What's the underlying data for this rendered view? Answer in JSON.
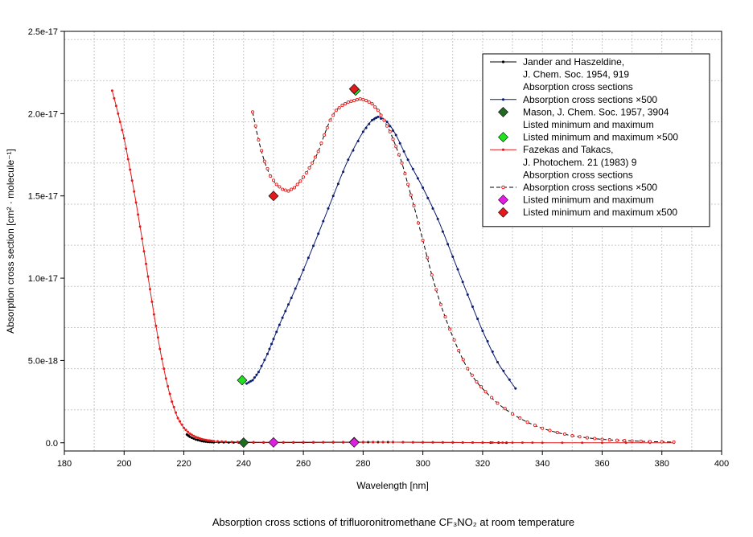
{
  "chart_data": {
    "type": "line",
    "title": "",
    "xlabel": "Wavelength [nm]",
    "ylabel": "Absorption cross section [cm² · molecule⁻¹]",
    "caption": "Absorption cross sctions of trifluoronitromethane CF₃NO₂ at room temperature",
    "xlim": [
      180,
      400
    ],
    "ylim": [
      -5e-19,
      2.5e-17
    ],
    "xticks": [
      180,
      200,
      220,
      240,
      260,
      280,
      300,
      320,
      340,
      360,
      380,
      400
    ],
    "xtick_labels": [
      "180",
      "200",
      "220",
      "240",
      "260",
      "280",
      "300",
      "320",
      "340",
      "360",
      "380",
      "400"
    ],
    "yticks": [
      0,
      5e-18,
      1e-17,
      1.5e-17,
      2e-17,
      2.5e-17
    ],
    "ytick_labels": [
      "0.0",
      "5.0e-18",
      "1.0e-17",
      "1.5e-17",
      "2.0e-17",
      "2.5e-17"
    ],
    "grid": true,
    "legend_position": "top-right",
    "colors": {
      "black": "#000000",
      "navy": "#0a1a6e",
      "red": "#e41a1a",
      "darkgreen": "#1f6b1f",
      "lime": "#22e022",
      "magenta": "#e020e0"
    },
    "series": [
      {
        "name": "Jander and Haszeldine, J. Chem. Soc. 1954, 919 Absorption cross sections",
        "style": "line-dots",
        "color": "#000000",
        "points": [
          [
            221,
            5e-19
          ],
          [
            222,
            3.6e-19
          ],
          [
            224,
            2e-19
          ],
          [
            226,
            1e-19
          ],
          [
            228,
            5e-20
          ],
          [
            230,
            3e-20
          ],
          [
            235,
            2e-20
          ],
          [
            240,
            1.5e-20
          ],
          [
            250,
            1.3e-20
          ],
          [
            260,
            1.5e-20
          ],
          [
            270,
            2.3e-20
          ],
          [
            280,
            3.3e-20
          ],
          [
            285,
            3.9e-20
          ],
          [
            290,
            3.6e-20
          ],
          [
            300,
            2.6e-20
          ],
          [
            310,
            1.6e-20
          ],
          [
            320,
            9e-21
          ],
          [
            328,
            5e-21
          ]
        ]
      },
      {
        "name": "Absorption cross sections ×500",
        "style": "line-dots",
        "color": "#0a1a6e",
        "points": [
          [
            241,
            3.6e-18
          ],
          [
            243,
            3.8e-18
          ],
          [
            245,
            4.3e-18
          ],
          [
            248,
            5.4e-18
          ],
          [
            250,
            6.3e-18
          ],
          [
            253,
            7.6e-18
          ],
          [
            256,
            8.8e-18
          ],
          [
            260,
            1.05e-17
          ],
          [
            265,
            1.27e-17
          ],
          [
            270,
            1.5e-17
          ],
          [
            275,
            1.72e-17
          ],
          [
            280,
            1.89e-17
          ],
          [
            283,
            1.96e-17
          ],
          [
            285,
            1.98e-17
          ],
          [
            288,
            1.95e-17
          ],
          [
            291,
            1.87e-17
          ],
          [
            295,
            1.72e-17
          ],
          [
            300,
            1.55e-17
          ],
          [
            305,
            1.36e-17
          ],
          [
            310,
            1.13e-17
          ],
          [
            315,
            9e-18
          ],
          [
            320,
            6.8e-18
          ],
          [
            325,
            4.9e-18
          ],
          [
            331,
            3.3e-18
          ]
        ]
      },
      {
        "name": "Fazekas and Takacs, J. Photochem. 21 (1983) 9 Absorption cross sections",
        "style": "line-dots",
        "color": "#e41a1a",
        "points": [
          [
            196,
            2.14e-17
          ],
          [
            198,
            2e-17
          ],
          [
            200,
            1.85e-17
          ],
          [
            202,
            1.66e-17
          ],
          [
            204,
            1.46e-17
          ],
          [
            206,
            1.24e-17
          ],
          [
            208,
            1.01e-17
          ],
          [
            210,
            7.8e-18
          ],
          [
            212,
            5.7e-18
          ],
          [
            214,
            3.9e-18
          ],
          [
            216,
            2.5e-18
          ],
          [
            218,
            1.5e-18
          ],
          [
            220,
            9e-19
          ],
          [
            222,
            5.5e-19
          ],
          [
            224,
            3.5e-19
          ],
          [
            226,
            2.2e-19
          ],
          [
            228,
            1.5e-19
          ],
          [
            230,
            1e-19
          ],
          [
            234,
            6e-20
          ],
          [
            240,
            4e-20
          ],
          [
            250,
            3.2e-20
          ],
          [
            260,
            3.5e-20
          ],
          [
            270,
            4e-20
          ],
          [
            280,
            4.2e-20
          ],
          [
            290,
            3.8e-20
          ],
          [
            300,
            3e-20
          ],
          [
            310,
            2e-20
          ],
          [
            320,
            1.3e-20
          ],
          [
            330,
            8e-21
          ],
          [
            340,
            5e-21
          ],
          [
            360,
            2e-21
          ],
          [
            384,
            1e-21
          ]
        ]
      },
      {
        "name": "Absorption cross sections ×500",
        "style": "dashed-hollow",
        "color": "#e41a1a",
        "points": [
          [
            243,
            2.01e-17
          ],
          [
            245,
            1.84e-17
          ],
          [
            247,
            1.71e-17
          ],
          [
            249,
            1.62e-17
          ],
          [
            251,
            1.57e-17
          ],
          [
            253,
            1.54e-17
          ],
          [
            255,
            1.53e-17
          ],
          [
            257,
            1.55e-17
          ],
          [
            259,
            1.59e-17
          ],
          [
            261,
            1.64e-17
          ],
          [
            263,
            1.7e-17
          ],
          [
            265,
            1.77e-17
          ],
          [
            267,
            1.87e-17
          ],
          [
            269,
            1.96e-17
          ],
          [
            271,
            2.02e-17
          ],
          [
            273,
            2.05e-17
          ],
          [
            275,
            2.07e-17
          ],
          [
            277,
            2.08e-17
          ],
          [
            279,
            2.09e-17
          ],
          [
            281,
            2.08e-17
          ],
          [
            283,
            2.06e-17
          ],
          [
            285,
            2.02e-17
          ],
          [
            287,
            1.96e-17
          ],
          [
            289,
            1.89e-17
          ],
          [
            291,
            1.8e-17
          ],
          [
            293,
            1.7e-17
          ],
          [
            295,
            1.57e-17
          ],
          [
            297,
            1.44e-17
          ],
          [
            300,
            1.23e-17
          ],
          [
            303,
            1.02e-17
          ],
          [
            306,
            8.4e-18
          ],
          [
            309,
            6.9e-18
          ],
          [
            312,
            5.6e-18
          ],
          [
            315,
            4.5e-18
          ],
          [
            318,
            3.7e-18
          ],
          [
            321,
            3.1e-18
          ],
          [
            325,
            2.4e-18
          ],
          [
            330,
            1.75e-18
          ],
          [
            335,
            1.25e-18
          ],
          [
            340,
            8.8e-19
          ],
          [
            345,
            6.2e-19
          ],
          [
            350,
            4.3e-19
          ],
          [
            355,
            3e-19
          ],
          [
            360,
            2.1e-19
          ],
          [
            365,
            1.5e-19
          ],
          [
            370,
            1.1e-19
          ],
          [
            376,
            7e-20
          ],
          [
            384,
            4e-20
          ]
        ]
      }
    ],
    "markers": [
      {
        "name": "Mason, J. Chem. Soc. 1957, 3904 Listed minimum and maximum",
        "color": "#1f6b1f",
        "points": [
          [
            240,
            1e-20
          ],
          [
            277,
            4e-20
          ]
        ]
      },
      {
        "name": "Listed minimum and maximum ×500",
        "color": "#22e022",
        "points": [
          [
            239.5,
            3.8e-18
          ],
          [
            277.5,
            2.14e-17
          ]
        ]
      },
      {
        "name": "Listed minimum and maximum",
        "color": "#e020e0",
        "points": [
          [
            250,
            2e-20
          ],
          [
            277,
            2e-20
          ]
        ]
      },
      {
        "name": "Listed minimum and maximum x500",
        "color": "#e41a1a",
        "points": [
          [
            250,
            1.5e-17
          ],
          [
            277,
            2.15e-17
          ]
        ]
      }
    ],
    "legend": [
      {
        "kind": "line",
        "series": 0,
        "lines": [
          "Jander and Haszeldine,",
          "J. Chem. Soc. 1954,  919",
          "Absorption cross sections"
        ]
      },
      {
        "kind": "line",
        "series": 1,
        "lines": [
          "Absorption cross sections ×500"
        ]
      },
      {
        "kind": "marker",
        "marker": 0,
        "lines": [
          "Mason, J. Chem. Soc. 1957,  3904",
          "Listed minimum and maximum"
        ]
      },
      {
        "kind": "marker",
        "marker": 1,
        "lines": [
          "Listed minimum and maximum ×500"
        ]
      },
      {
        "kind": "line",
        "series": 2,
        "lines": [
          "Fazekas and Takacs,",
          "J. Photochem. 21 (1983) 9",
          "Absorption cross sections"
        ]
      },
      {
        "kind": "line",
        "series": 3,
        "lines": [
          "Absorption cross sections ×500"
        ]
      },
      {
        "kind": "marker",
        "marker": 2,
        "lines": [
          "Listed minimum and maximum"
        ]
      },
      {
        "kind": "marker",
        "marker": 3,
        "lines": [
          "Listed minimum and maximum x500"
        ]
      }
    ]
  }
}
